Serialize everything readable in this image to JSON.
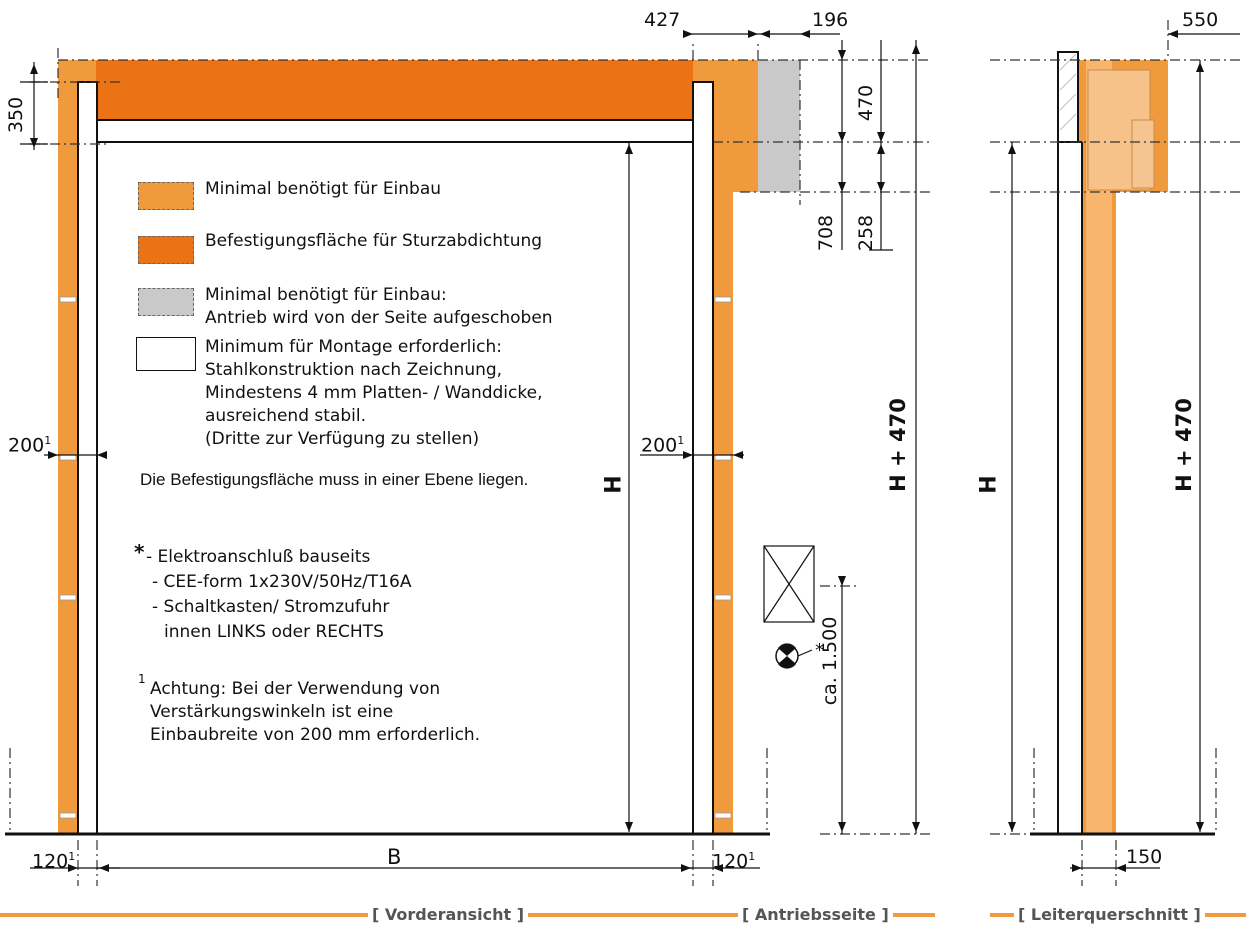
{
  "colors": {
    "light_orange": "#F09A3E",
    "dark_orange": "#EB7315",
    "mid_orange": "#F7B56E",
    "grey": "#C9C9C9"
  },
  "legend": {
    "light": "Minimal benötigt für Einbau",
    "dark": "Befestigungsfläche für Sturzabdichtung",
    "grey_line1": "Minimal benötigt für Einbau:",
    "grey_line2": "Antrieb wird von der Seite aufgeschoben",
    "white_line1": "Minimum für Montage erforderlich:",
    "white_line2": "Stahlkonstruktion nach Zeichnung,",
    "white_line3": "Mindestens 4 mm Platten- / Wanddicke,",
    "white_line4": "ausreichend stabil.",
    "white_line5": "(Dritte zur Verfügung zu stellen)"
  },
  "plane_note": "Die Befestigungsfläche muss in einer Ebene liegen.",
  "electrical": {
    "star": "*",
    "line1": "- Elektroanschluß bauseits",
    "line2": "- CEE-form 1x230V/50Hz/T16A",
    "line3": "- Schaltkasten/ Stromzufuhr",
    "line4": "innen LINKS oder RECHTS"
  },
  "footnote": {
    "mark": "1",
    "line1": "Achtung: Bei der Verwendung von",
    "line2": "Verstärkungswinkeln ist eine",
    "line3": "Einbaubreite von 200 mm erforderlich."
  },
  "dims": {
    "d427": "427",
    "d196": "196",
    "d550": "550",
    "d350": "350",
    "d470": "470",
    "d708": "708",
    "d258": "258",
    "d200_left": "200",
    "d200_right": "200",
    "d120_left": "120",
    "d120_right": "120",
    "sup1": "1",
    "B": "B",
    "H_front": "H",
    "H470_front": "H + 470",
    "ca1500": "ca. 1.500",
    "socket_star": "*",
    "H_side": "H",
    "H470_side": "H + 470",
    "d150": "150"
  },
  "footer": {
    "front": "[ Vorderansicht ]",
    "drive": "[ Antriebsseite ]",
    "ladder": "[ Leiterquerschnitt ]"
  }
}
